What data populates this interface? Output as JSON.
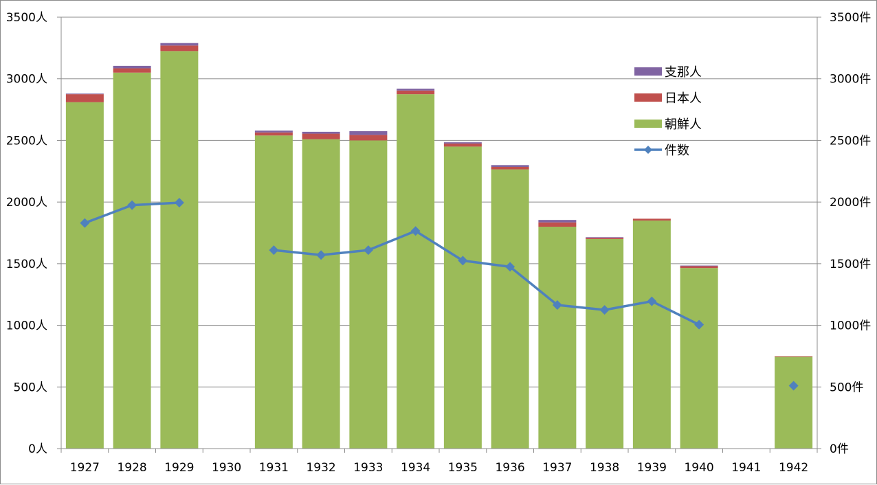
{
  "chart_data": {
    "type": "bar",
    "stacked": true,
    "secondary_type": "line",
    "categories": [
      "1927",
      "1928",
      "1929",
      "1930",
      "1931",
      "1932",
      "1933",
      "1934",
      "1935",
      "1936",
      "1937",
      "1938",
      "1939",
      "1940",
      "1941",
      "1942"
    ],
    "series": [
      {
        "name": "朝鮮人",
        "kind": "bar",
        "color": "#9bbb59",
        "values": [
          2810,
          3050,
          3225,
          null,
          2540,
          2510,
          2500,
          2875,
          2450,
          2265,
          1800,
          1700,
          1850,
          1465,
          null,
          745
        ]
      },
      {
        "name": "日本人",
        "kind": "bar",
        "color": "#c0504d",
        "values": [
          65,
          35,
          45,
          null,
          25,
          45,
          45,
          30,
          25,
          20,
          35,
          10,
          15,
          15,
          null,
          5
        ]
      },
      {
        "name": "支那人",
        "kind": "bar",
        "color": "#8064a2",
        "values": [
          5,
          20,
          20,
          null,
          15,
          15,
          30,
          15,
          10,
          15,
          20,
          5,
          0,
          5,
          null,
          0
        ]
      },
      {
        "name": "件数",
        "kind": "line",
        "axis": "right",
        "color": "#4f81bd",
        "values": [
          1830,
          1975,
          1995,
          null,
          1610,
          1570,
          1610,
          1765,
          1525,
          1475,
          1165,
          1125,
          1195,
          1005,
          null,
          510
        ]
      }
    ],
    "left_axis": {
      "ylim": [
        0,
        3500
      ],
      "ticks": [
        "0人",
        "500人",
        "1000人",
        "1500人",
        "2000人",
        "2500人",
        "3000人",
        "3500人"
      ]
    },
    "right_axis": {
      "ylim": [
        0,
        3500
      ],
      "ticks": [
        "0件",
        "500件",
        "1000件",
        "1500件",
        "2000件",
        "2500件",
        "3000件",
        "3500件"
      ]
    },
    "grid": true,
    "legend": {
      "position": "top-right",
      "entries": [
        "支那人",
        "日本人",
        "朝鮮人",
        "件数"
      ]
    },
    "title": "",
    "xlabel": "",
    "ylabel": ""
  }
}
